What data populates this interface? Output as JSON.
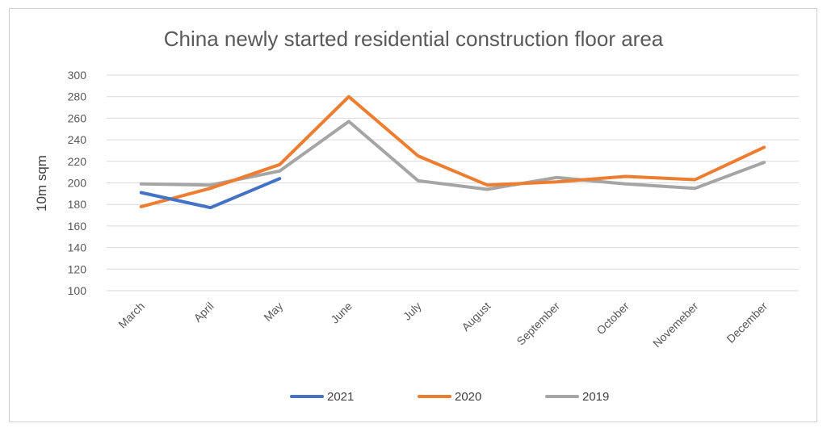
{
  "chart_data": {
    "type": "line",
    "title": "China newly started residential construction floor area",
    "xlabel": "",
    "ylabel": "10m sqm",
    "ylim": [
      100,
      300
    ],
    "yticks": [
      100,
      120,
      140,
      160,
      180,
      200,
      220,
      240,
      260,
      280,
      300
    ],
    "grid": true,
    "legend": "bottom",
    "categories": [
      "March",
      "April",
      "May",
      "June",
      "July",
      "August",
      "September",
      "October",
      "Novemeber",
      "December"
    ],
    "series": [
      {
        "name": "2021",
        "color": "#4472C4",
        "values": [
          191,
          177,
          204,
          null,
          null,
          null,
          null,
          null,
          null,
          null
        ]
      },
      {
        "name": "2020",
        "color": "#ED7D31",
        "values": [
          178,
          195,
          217,
          280,
          225,
          198,
          201,
          206,
          203,
          233
        ]
      },
      {
        "name": "2019",
        "color": "#A5A5A5",
        "values": [
          199,
          198,
          211,
          257,
          202,
          194,
          205,
          199,
          195,
          219
        ]
      }
    ]
  }
}
